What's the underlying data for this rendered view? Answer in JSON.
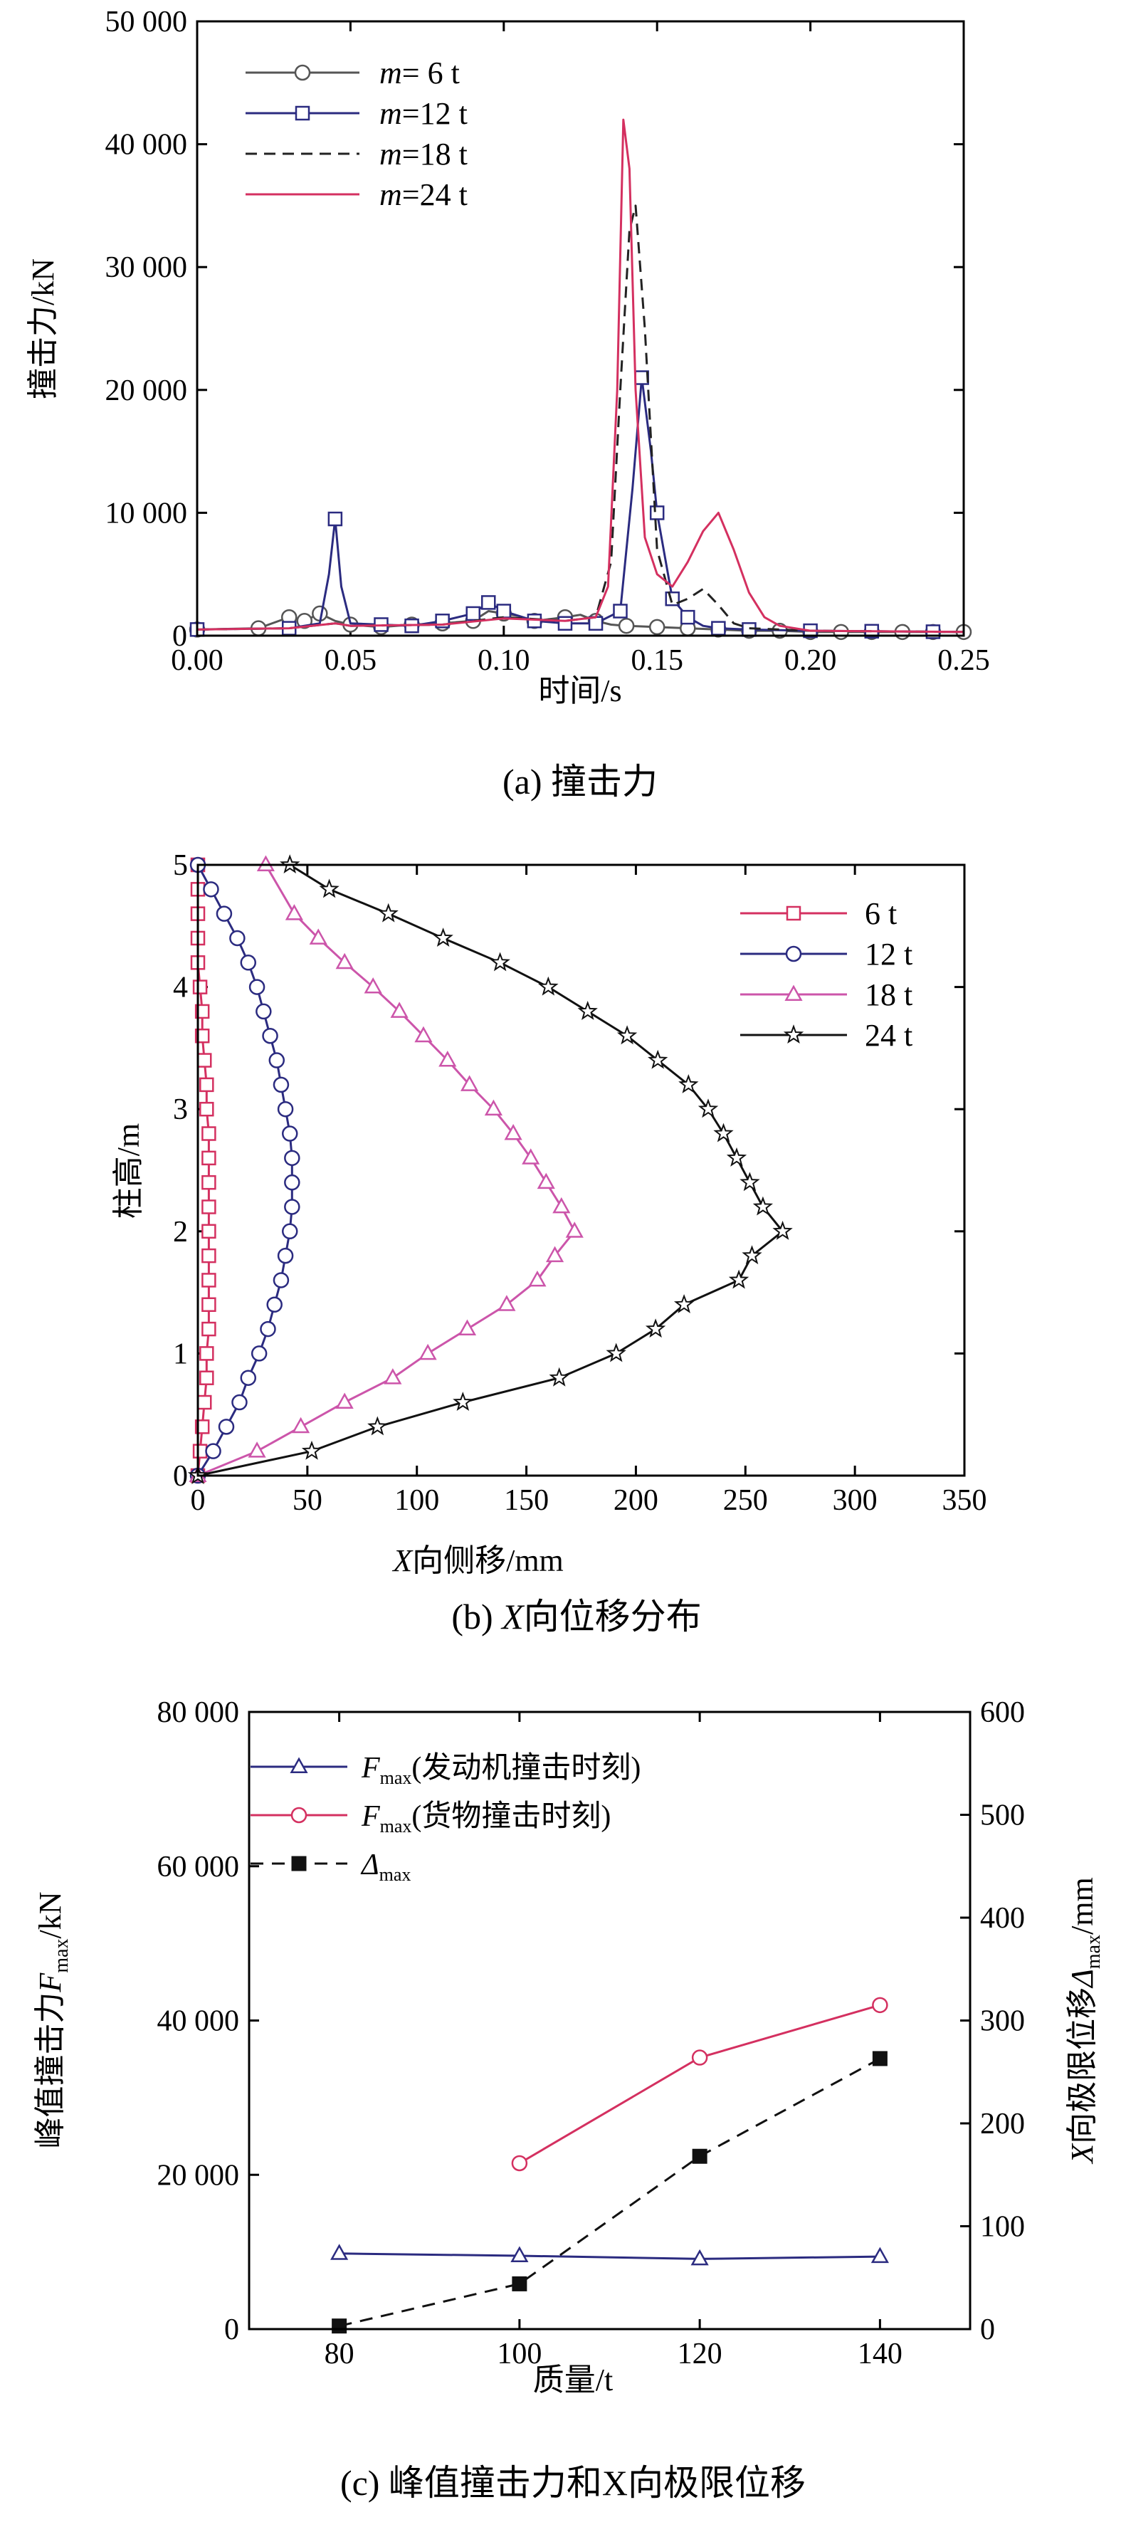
{
  "chart_data": [
    {
      "id": "a",
      "type": "line",
      "caption": "(a) 撞击力",
      "xlabel": "时间/s",
      "ylabel": "撞击力/kN",
      "xlim": [
        0,
        0.25
      ],
      "ylim": [
        0,
        50000
      ],
      "xticks": [
        0.0,
        0.05,
        0.1,
        0.15,
        0.2,
        0.25
      ],
      "xtick_labels": [
        "0.00",
        "0.05",
        "0.10",
        "0.15",
        "0.20",
        "0.25"
      ],
      "yticks": [
        0,
        10000,
        20000,
        30000,
        40000,
        50000
      ],
      "ytick_labels": [
        "0",
        "10 000",
        "20 000",
        "30 000",
        "40 000",
        "50 000"
      ],
      "legend_position": "top-left",
      "series": [
        {
          "name_prefix": "m",
          "name_suffix": "= 6 t",
          "color": "#555555",
          "marker": "circle",
          "dash": "solid",
          "x": [
            0.0,
            0.02,
            0.03,
            0.035,
            0.04,
            0.045,
            0.05,
            0.055,
            0.06,
            0.07,
            0.08,
            0.09,
            0.095,
            0.1,
            0.105,
            0.11,
            0.12,
            0.125,
            0.13,
            0.135,
            0.14,
            0.15,
            0.16,
            0.17,
            0.18,
            0.19,
            0.2,
            0.22,
            0.25
          ],
          "y": [
            500,
            600,
            1500,
            1200,
            1800,
            1200,
            900,
            800,
            700,
            900,
            1000,
            1200,
            2000,
            1800,
            1600,
            1200,
            1500,
            1700,
            1200,
            900,
            800,
            700,
            600,
            500,
            400,
            400,
            300,
            300,
            300
          ],
          "marker_x": [
            0.0,
            0.02,
            0.03,
            0.035,
            0.04,
            0.05,
            0.06,
            0.07,
            0.08,
            0.09,
            0.1,
            0.11,
            0.12,
            0.13,
            0.14,
            0.15,
            0.16,
            0.17,
            0.18,
            0.19,
            0.2,
            0.21,
            0.22,
            0.23,
            0.24,
            0.25
          ]
        },
        {
          "name_prefix": "m",
          "name_suffix": "=12 t",
          "color": "#2b2b80",
          "marker": "square",
          "dash": "solid",
          "x": [
            0.0,
            0.03,
            0.04,
            0.043,
            0.045,
            0.047,
            0.05,
            0.06,
            0.07,
            0.08,
            0.09,
            0.095,
            0.1,
            0.11,
            0.12,
            0.13,
            0.138,
            0.142,
            0.145,
            0.148,
            0.15,
            0.155,
            0.16,
            0.165,
            0.17,
            0.18,
            0.2,
            0.25
          ],
          "y": [
            500,
            600,
            1000,
            5000,
            9500,
            4000,
            1000,
            900,
            800,
            1200,
            1800,
            2700,
            2000,
            1200,
            1000,
            1000,
            2000,
            12000,
            21000,
            15000,
            10000,
            3000,
            1500,
            800,
            600,
            500,
            400,
            300
          ],
          "marker_x": [
            0.0,
            0.03,
            0.045,
            0.06,
            0.07,
            0.08,
            0.09,
            0.095,
            0.1,
            0.11,
            0.12,
            0.13,
            0.138,
            0.145,
            0.15,
            0.155,
            0.16,
            0.17,
            0.18,
            0.2,
            0.22,
            0.24
          ]
        },
        {
          "name_prefix": "m",
          "name_suffix": "=18 t",
          "color": "#222222",
          "marker": "none",
          "dash": "dash",
          "x": [
            0.0,
            0.03,
            0.045,
            0.05,
            0.08,
            0.1,
            0.12,
            0.13,
            0.135,
            0.138,
            0.141,
            0.143,
            0.146,
            0.15,
            0.155,
            0.16,
            0.165,
            0.17,
            0.175,
            0.18,
            0.2,
            0.25
          ],
          "y": [
            500,
            600,
            1000,
            800,
            900,
            1500,
            1200,
            1500,
            6000,
            20000,
            33000,
            35000,
            25000,
            7000,
            2500,
            3000,
            3800,
            2500,
            1000,
            600,
            400,
            300
          ]
        },
        {
          "name_prefix": "m",
          "name_suffix": "=24 t",
          "color": "#d43060",
          "marker": "none",
          "dash": "solid",
          "x": [
            0.0,
            0.03,
            0.045,
            0.05,
            0.08,
            0.1,
            0.12,
            0.13,
            0.134,
            0.137,
            0.139,
            0.141,
            0.143,
            0.146,
            0.15,
            0.155,
            0.16,
            0.165,
            0.17,
            0.175,
            0.18,
            0.185,
            0.19,
            0.2,
            0.25
          ],
          "y": [
            500,
            600,
            1000,
            800,
            900,
            1400,
            1200,
            1500,
            4000,
            20000,
            42000,
            38000,
            20000,
            8000,
            5000,
            4000,
            6000,
            8500,
            10000,
            7000,
            3500,
            1500,
            800,
            400,
            300
          ]
        }
      ]
    },
    {
      "id": "b",
      "type": "line",
      "caption_prefix": "(b) ",
      "caption_var": "X",
      "caption_suffix": "向位移分布",
      "xlabel_var": "X",
      "xlabel_suffix": "向侧移/mm",
      "ylabel": "柱高/m",
      "xlim": [
        0,
        350
      ],
      "ylim": [
        0,
        5
      ],
      "xticks": [
        0,
        50,
        100,
        150,
        200,
        250,
        300,
        350
      ],
      "yticks": [
        0,
        1,
        2,
        3,
        4,
        5
      ],
      "legend_position": "top-right",
      "series": [
        {
          "name": "6 t",
          "color": "#d43060",
          "marker": "square",
          "x": [
            0,
            1,
            2,
            3,
            4,
            4,
            5,
            5,
            5,
            5,
            5,
            5,
            5,
            5,
            5,
            4,
            4,
            3,
            2,
            2,
            1,
            0,
            0,
            0,
            0,
            0
          ],
          "y": [
            0,
            0.2,
            0.4,
            0.6,
            0.8,
            1.0,
            1.2,
            1.4,
            1.6,
            1.8,
            2.0,
            2.2,
            2.4,
            2.6,
            2.8,
            3.0,
            3.2,
            3.4,
            3.6,
            3.8,
            4.0,
            4.2,
            4.4,
            4.6,
            4.8,
            5.0
          ]
        },
        {
          "name": "12 t",
          "color": "#2b2b80",
          "marker": "circle",
          "x": [
            0,
            7,
            13,
            19,
            23,
            28,
            32,
            35,
            38,
            40,
            42,
            43,
            43,
            43,
            42,
            40,
            38,
            36,
            33,
            30,
            27,
            23,
            18,
            12,
            6,
            0
          ],
          "y": [
            0,
            0.2,
            0.4,
            0.6,
            0.8,
            1.0,
            1.2,
            1.4,
            1.6,
            1.8,
            2.0,
            2.2,
            2.4,
            2.6,
            2.8,
            3.0,
            3.2,
            3.4,
            3.6,
            3.8,
            4.0,
            4.2,
            4.4,
            4.6,
            4.8,
            5.0
          ]
        },
        {
          "name": "18 t",
          "color": "#cc55aa",
          "marker": "triangle",
          "x": [
            0,
            27,
            47,
            67,
            89,
            105,
            123,
            141,
            155,
            163,
            172,
            166,
            159,
            152,
            144,
            135,
            124,
            114,
            103,
            92,
            80,
            67,
            55,
            44,
            31
          ],
          "y": [
            0,
            0.2,
            0.4,
            0.6,
            0.8,
            1.0,
            1.2,
            1.4,
            1.6,
            1.8,
            2.0,
            2.2,
            2.4,
            2.6,
            2.8,
            3.0,
            3.2,
            3.4,
            3.6,
            3.8,
            4.0,
            4.2,
            4.4,
            4.6,
            5.0
          ]
        },
        {
          "name": "24 t",
          "color": "#111111",
          "marker": "star",
          "x": [
            0,
            52,
            82,
            121,
            165,
            191,
            209,
            222,
            247,
            253,
            267,
            258,
            252,
            246,
            240,
            233,
            224,
            210,
            196,
            178,
            160,
            138,
            112,
            87,
            60,
            42
          ],
          "y": [
            0,
            0.2,
            0.4,
            0.6,
            0.8,
            1.0,
            1.2,
            1.4,
            1.6,
            1.8,
            2.0,
            2.2,
            2.4,
            2.6,
            2.8,
            3.0,
            3.2,
            3.4,
            3.6,
            3.8,
            4.0,
            4.2,
            4.4,
            4.6,
            4.8,
            5.0
          ]
        }
      ]
    },
    {
      "id": "c",
      "type": "line",
      "caption": "(c) 峰值撞击力和X向极限位移",
      "xlabel": "质量/t",
      "ylabel_prefix": "峰值撞击力",
      "ylabel_var": "F",
      "ylabel_sub": "max",
      "ylabel_unit": "/kN",
      "y2label_var": "X",
      "y2label_mid": "向极限位移",
      "y2label_delta": "Δ",
      "y2label_sub": "max",
      "y2label_unit": "/mm",
      "xlim": [
        70,
        150
      ],
      "ylim": [
        0,
        80000
      ],
      "y2lim": [
        0,
        600
      ],
      "xticks": [
        80,
        100,
        120,
        140
      ],
      "yticks": [
        0,
        20000,
        40000,
        60000,
        80000
      ],
      "ytick_labels": [
        "0",
        "20 000",
        "40 000",
        "60 000",
        "80 000"
      ],
      "y2ticks": [
        0,
        100,
        200,
        300,
        400,
        500,
        600
      ],
      "legend_position": "top-left",
      "series": [
        {
          "var": "F",
          "sub": "max",
          "desc": "(发动机撞击时刻)",
          "color": "#2b2b80",
          "marker": "triangle",
          "axis": "left",
          "x": [
            80,
            100,
            120,
            140
          ],
          "y": [
            9800,
            9500,
            9100,
            9400
          ]
        },
        {
          "var": "F",
          "sub": "max",
          "desc": "(货物撞击时刻)",
          "color": "#d43060",
          "marker": "circle",
          "axis": "left",
          "x": [
            100,
            120,
            140
          ],
          "y": [
            21500,
            35200,
            42000
          ]
        },
        {
          "var": "Δ",
          "sub": "max",
          "desc": "",
          "color": "#111111",
          "marker": "filled-square",
          "dash": "dash",
          "axis": "right",
          "x": [
            80,
            100,
            120,
            140
          ],
          "y": [
            3,
            44,
            168,
            263
          ]
        }
      ]
    }
  ]
}
